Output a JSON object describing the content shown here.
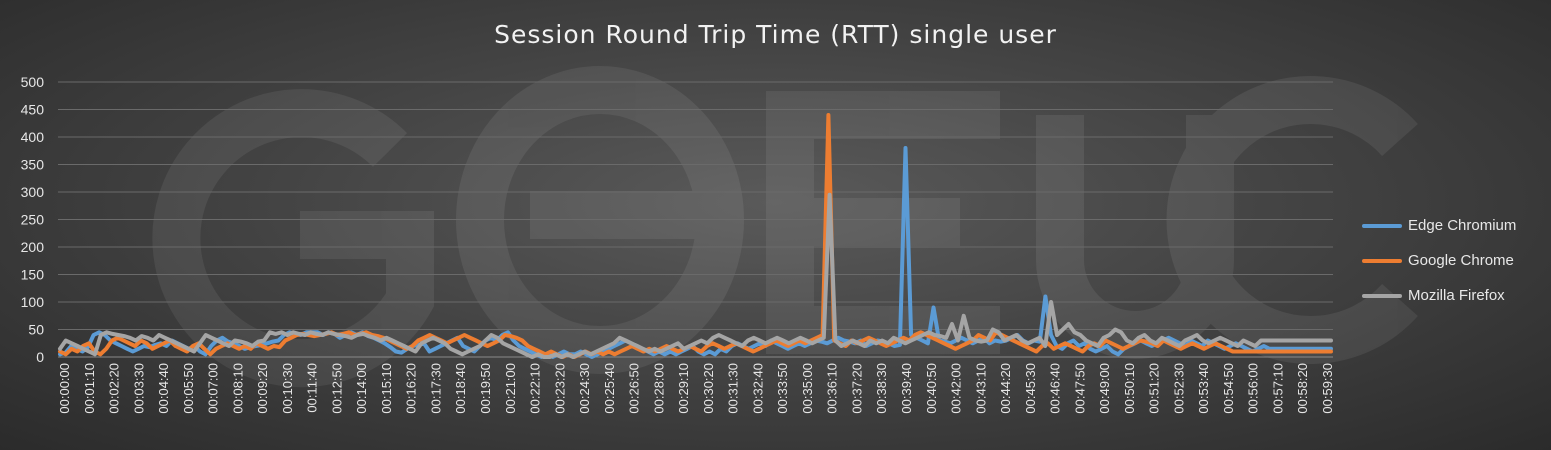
{
  "chart_data": {
    "type": "line",
    "title": "Session Round Trip Time (RTT) single user",
    "xlabel": "",
    "ylabel": "",
    "ylim": [
      0,
      500
    ],
    "yticks": [
      0,
      50,
      100,
      150,
      200,
      250,
      300,
      350,
      400,
      450,
      500
    ],
    "grid": true,
    "legend_position": "right",
    "watermark_text": "GO-EUC",
    "x_tick_labels": [
      "00:00:00",
      "00:01:10",
      "00:02:20",
      "00:03:30",
      "00:04:40",
      "00:05:50",
      "00:07:00",
      "00:08:10",
      "00:09:20",
      "00:10:30",
      "00:11:40",
      "00:12:50",
      "00:14:00",
      "00:15:10",
      "00:16:20",
      "00:17:30",
      "00:18:40",
      "00:19:50",
      "00:21:00",
      "00:22:10",
      "00:23:20",
      "00:24:30",
      "00:25:40",
      "00:26:50",
      "00:28:00",
      "00:29:10",
      "00:30:20",
      "00:31:30",
      "00:32:40",
      "00:33:50",
      "00:35:00",
      "00:36:10",
      "00:37:20",
      "00:38:30",
      "00:39:40",
      "00:40:50",
      "00:42:00",
      "00:43:10",
      "00:44:20",
      "00:45:30",
      "00:46:40",
      "00:47:50",
      "00:49:00",
      "00:50:10",
      "00:51:20",
      "00:52:30",
      "00:53:40",
      "00:54:50",
      "00:56:00",
      "00:57:10",
      "00:58:20",
      "00:59:30"
    ],
    "colors": {
      "Edge Chromium": "#5b9bd5",
      "Google Chrome": "#ed7d31",
      "Mozilla Firefox": "#a5a5a5"
    },
    "series": [
      {
        "name": "Edge Chromium",
        "values": [
          5,
          8,
          20,
          15,
          10,
          18,
          40,
          45,
          40,
          30,
          25,
          20,
          15,
          10,
          15,
          20,
          18,
          22,
          25,
          20,
          30,
          25,
          20,
          15,
          20,
          10,
          5,
          20,
          30,
          35,
          28,
          25,
          20,
          15,
          18,
          20,
          22,
          25,
          28,
          30,
          40,
          45,
          42,
          40,
          45,
          45,
          45,
          40,
          45,
          42,
          35,
          40,
          45,
          40,
          45,
          38,
          35,
          30,
          25,
          18,
          10,
          8,
          15,
          20,
          22,
          25,
          10,
          15,
          20,
          25,
          30,
          35,
          20,
          15,
          10,
          20,
          30,
          35,
          30,
          40,
          45,
          30,
          20,
          15,
          10,
          5,
          0,
          5,
          0,
          5,
          10,
          5,
          5,
          10,
          5,
          0,
          5,
          10,
          15,
          20,
          25,
          30,
          25,
          20,
          15,
          10,
          5,
          10,
          5,
          10,
          5,
          10,
          15,
          20,
          10,
          5,
          10,
          5,
          15,
          10,
          20,
          25,
          20,
          15,
          20,
          25,
          20,
          30,
          25,
          20,
          15,
          20,
          25,
          20,
          25,
          30,
          28,
          25,
          30,
          35,
          30,
          28,
          25,
          30,
          20,
          25,
          30,
          28,
          25,
          20,
          22,
          380,
          40,
          35,
          30,
          25,
          90,
          30,
          28,
          25,
          30,
          35,
          30,
          25,
          30,
          35,
          25,
          30,
          28,
          30,
          35,
          40,
          30,
          25,
          30,
          28,
          110,
          40,
          20,
          15,
          25,
          30,
          20,
          25,
          15,
          10,
          15,
          20,
          10,
          5,
          15,
          20,
          25,
          30,
          25,
          20,
          25,
          30,
          35,
          30,
          25,
          20,
          30,
          25,
          20,
          30,
          25,
          20,
          15,
          20,
          25,
          20,
          15,
          10,
          15,
          20,
          15,
          15,
          15,
          15,
          15,
          15,
          15,
          15,
          15,
          15,
          15,
          15
        ]
      },
      {
        "name": "Google Chrome",
        "values": [
          10,
          5,
          15,
          10,
          20,
          25,
          10,
          5,
          15,
          30,
          35,
          30,
          25,
          20,
          30,
          25,
          15,
          20,
          25,
          30,
          20,
          15,
          10,
          20,
          25,
          15,
          5,
          15,
          20,
          25,
          20,
          15,
          20,
          15,
          25,
          20,
          15,
          20,
          18,
          30,
          35,
          40,
          42,
          40,
          38,
          40,
          42,
          45,
          40,
          42,
          45,
          40,
          42,
          45,
          40,
          38,
          35,
          30,
          25,
          20,
          15,
          20,
          30,
          35,
          40,
          35,
          30,
          25,
          30,
          35,
          40,
          35,
          30,
          25,
          20,
          25,
          30,
          40,
          38,
          35,
          30,
          20,
          15,
          10,
          5,
          10,
          5,
          0,
          5,
          0,
          5,
          10,
          5,
          10,
          5,
          10,
          5,
          10,
          15,
          20,
          15,
          10,
          15,
          10,
          15,
          20,
          15,
          10,
          15,
          20,
          15,
          10,
          20,
          25,
          20,
          15,
          20,
          25,
          20,
          15,
          10,
          15,
          20,
          25,
          30,
          25,
          20,
          25,
          30,
          25,
          30,
          35,
          40,
          440,
          30,
          25,
          20,
          30,
          25,
          30,
          35,
          30,
          25,
          20,
          25,
          30,
          35,
          30,
          40,
          45,
          40,
          35,
          30,
          25,
          20,
          15,
          20,
          25,
          30,
          40,
          35,
          30,
          45,
          40,
          35,
          30,
          25,
          20,
          15,
          10,
          20,
          25,
          15,
          20,
          25,
          20,
          15,
          10,
          20,
          25,
          20,
          30,
          25,
          20,
          15,
          20,
          25,
          30,
          28,
          25,
          20,
          30,
          25,
          20,
          15,
          20,
          25,
          20,
          15,
          20,
          25,
          20,
          15,
          10,
          10,
          10,
          10,
          10,
          10,
          10,
          10,
          10,
          10,
          10,
          10,
          10,
          10,
          10,
          10,
          10,
          10
        ]
      },
      {
        "name": "Mozilla Firefox",
        "values": [
          15,
          30,
          25,
          20,
          15,
          10,
          5,
          40,
          45,
          42,
          40,
          38,
          35,
          30,
          38,
          35,
          30,
          40,
          35,
          30,
          25,
          20,
          15,
          10,
          25,
          40,
          35,
          30,
          25,
          20,
          30,
          28,
          25,
          20,
          28,
          30,
          45,
          42,
          45,
          40,
          45,
          42,
          40,
          45,
          42,
          40,
          45,
          42,
          40,
          38,
          35,
          40,
          42,
          38,
          35,
          30,
          35,
          30,
          25,
          20,
          15,
          10,
          25,
          30,
          35,
          30,
          25,
          15,
          10,
          5,
          10,
          15,
          20,
          30,
          40,
          35,
          25,
          20,
          15,
          10,
          5,
          0,
          5,
          0,
          0,
          5,
          0,
          5,
          0,
          5,
          10,
          5,
          10,
          15,
          20,
          25,
          35,
          30,
          25,
          20,
          15,
          10,
          15,
          10,
          15,
          20,
          25,
          15,
          20,
          25,
          30,
          25,
          35,
          40,
          35,
          30,
          25,
          20,
          30,
          35,
          30,
          25,
          30,
          35,
          30,
          25,
          30,
          35,
          30,
          25,
          30,
          35,
          295,
          30,
          20,
          25,
          30,
          25,
          20,
          30,
          25,
          30,
          25,
          35,
          30,
          25,
          30,
          35,
          40,
          45,
          40,
          38,
          35,
          60,
          30,
          75,
          35,
          30,
          28,
          30,
          50,
          45,
          30,
          35,
          40,
          30,
          25,
          30,
          35,
          20,
          100,
          40,
          50,
          60,
          45,
          40,
          30,
          25,
          20,
          35,
          40,
          50,
          45,
          30,
          25,
          35,
          40,
          30,
          25,
          35,
          30,
          25,
          20,
          30,
          35,
          40,
          30,
          25,
          30,
          35,
          30,
          25,
          20,
          30,
          25,
          20,
          30,
          30,
          30,
          30,
          30,
          30,
          30,
          30,
          30,
          30,
          30,
          30,
          30
        ]
      }
    ]
  }
}
